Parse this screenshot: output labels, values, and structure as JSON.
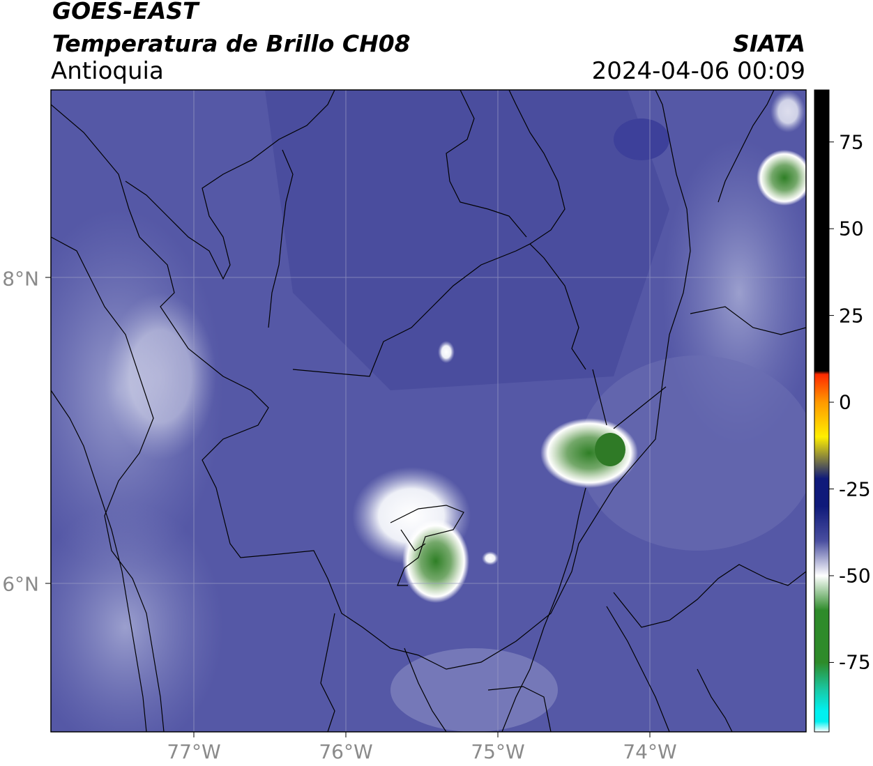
{
  "header": {
    "title_line1": "GOES-EAST",
    "title_line2": "Temperatura de Brillo CH08",
    "region": "Antioquia",
    "brand": "SIATA",
    "datetime": "2024-04-06 00:09"
  },
  "map": {
    "longitude_labels": [
      "77°W",
      "76°W",
      "75°W",
      "74°W"
    ],
    "latitude_labels": [
      "8°N",
      "6°N"
    ],
    "gridlines": true,
    "background_color": "#5a5fa8",
    "border_color": "#000000"
  },
  "colorbar": {
    "ticks": [
      "75",
      "50",
      "25",
      "0",
      "-25",
      "-50",
      "-75"
    ],
    "tick_values": [
      75,
      50,
      25,
      0,
      -25,
      -50,
      -75
    ],
    "range": [
      -95,
      90
    ],
    "colors": {
      "warm": "#000000",
      "red": "#ff2a00",
      "orange": "#ff9900",
      "yellow": "#ffee00",
      "navy": "#0f1a7a",
      "blue": "#4a4fa0",
      "white": "#ffffff",
      "green": "#2e8b2a",
      "teal": "#19c9a6",
      "cyan": "#00f0f0"
    }
  }
}
